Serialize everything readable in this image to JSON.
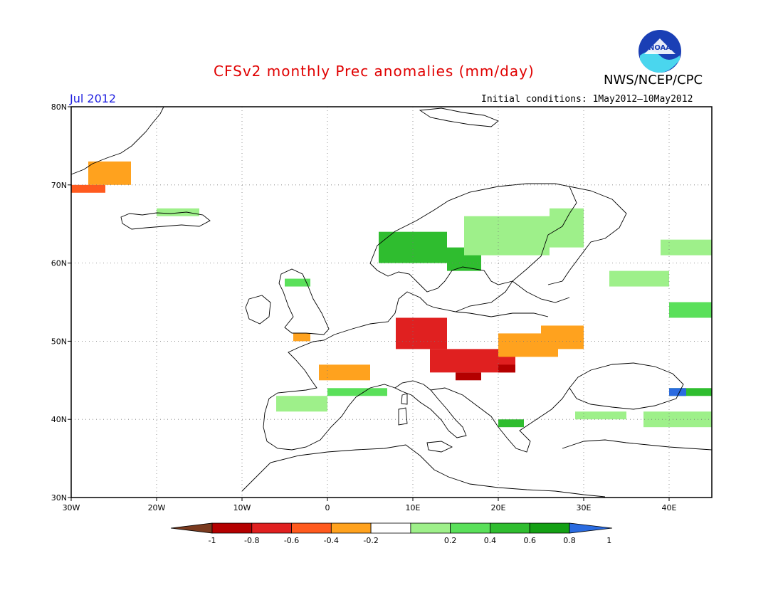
{
  "header": {
    "title": "CFSv2 monthly Prec anomalies (mm/day)",
    "agency": "NWS/NCEP/CPC",
    "month": "Jul 2012",
    "initial_conditions": "Initial conditions: 1May2012–10May2012",
    "logo_text": "NOAA"
  },
  "map": {
    "lon_range": [
      -30,
      45
    ],
    "lat_range": [
      30,
      80
    ],
    "lon_ticks": [
      {
        "value": -30,
        "label": "30W"
      },
      {
        "value": -20,
        "label": "20W"
      },
      {
        "value": -10,
        "label": "10W"
      },
      {
        "value": 0,
        "label": "0"
      },
      {
        "value": 10,
        "label": "10E"
      },
      {
        "value": 20,
        "label": "20E"
      },
      {
        "value": 30,
        "label": "30E"
      },
      {
        "value": 40,
        "label": "40E"
      }
    ],
    "lat_ticks": [
      {
        "value": 80,
        "label": "80N"
      },
      {
        "value": 70,
        "label": "70N"
      },
      {
        "value": 60,
        "label": "60N"
      },
      {
        "value": 50,
        "label": "50N"
      },
      {
        "value": 40,
        "label": "40N"
      },
      {
        "value": 30,
        "label": "30N"
      }
    ],
    "grid": true
  },
  "colorbar": {
    "colors": [
      "#7a3a1e",
      "#b40000",
      "#e02020",
      "#ff5a1e",
      "#ffa21e",
      "#ffffff",
      "#9ef08a",
      "#5ae05a",
      "#2fbd2f",
      "#14a014",
      "#2a6be0"
    ],
    "labels": [
      "-1",
      "-0.8",
      "-0.6",
      "-0.4",
      "-0.2",
      "0.2",
      "0.4",
      "0.6",
      "0.8",
      "1"
    ]
  },
  "chart_data": {
    "type": "heatmap",
    "title": "CFSv2 monthly Prec anomalies (mm/day)",
    "xlabel": "",
    "ylabel": "",
    "xlim": [
      -30,
      45
    ],
    "ylim": [
      30,
      80
    ],
    "regions": [
      {
        "lon": [
          -28,
          -23
        ],
        "lat": [
          70,
          73
        ],
        "anomaly": -0.3
      },
      {
        "lon": [
          -30,
          -26
        ],
        "lat": [
          69,
          70
        ],
        "anomaly": -0.5
      },
      {
        "lon": [
          -20,
          -15
        ],
        "lat": [
          66,
          67
        ],
        "anomaly": 0.3
      },
      {
        "lon": [
          6,
          14
        ],
        "lat": [
          60,
          64
        ],
        "anomaly": 0.6
      },
      {
        "lon": [
          14,
          18
        ],
        "lat": [
          59,
          62
        ],
        "anomaly": 0.6
      },
      {
        "lon": [
          16,
          26
        ],
        "lat": [
          61,
          66
        ],
        "anomaly": 0.3
      },
      {
        "lon": [
          26,
          30
        ],
        "lat": [
          62,
          67
        ],
        "anomaly": 0.3
      },
      {
        "lon": [
          -5,
          -2
        ],
        "lat": [
          57,
          58
        ],
        "anomaly": 0.4
      },
      {
        "lon": [
          -4,
          -2
        ],
        "lat": [
          50,
          51
        ],
        "anomaly": -0.3
      },
      {
        "lon": [
          8,
          14
        ],
        "lat": [
          49,
          53
        ],
        "anomaly": -0.6
      },
      {
        "lon": [
          12,
          22
        ],
        "lat": [
          46,
          49
        ],
        "anomaly": -0.7
      },
      {
        "lon": [
          15,
          18
        ],
        "lat": [
          45,
          46
        ],
        "anomaly": -0.9
      },
      {
        "lon": [
          20,
          22
        ],
        "lat": [
          46,
          47
        ],
        "anomaly": -0.9
      },
      {
        "lon": [
          20,
          27
        ],
        "lat": [
          48,
          51
        ],
        "anomaly": -0.3
      },
      {
        "lon": [
          25,
          30
        ],
        "lat": [
          49,
          52
        ],
        "anomaly": -0.3
      },
      {
        "lon": [
          -1,
          5
        ],
        "lat": [
          45,
          47
        ],
        "anomaly": -0.3
      },
      {
        "lon": [
          0,
          7
        ],
        "lat": [
          43,
          44
        ],
        "anomaly": 0.5
      },
      {
        "lon": [
          -6,
          0
        ],
        "lat": [
          41,
          43
        ],
        "anomaly": 0.3
      },
      {
        "lon": [
          20,
          23
        ],
        "lat": [
          39,
          40
        ],
        "anomaly": 0.7
      },
      {
        "lon": [
          29,
          35
        ],
        "lat": [
          40,
          41
        ],
        "anomaly": 0.3
      },
      {
        "lon": [
          37,
          45
        ],
        "lat": [
          39,
          41
        ],
        "anomaly": 0.3
      },
      {
        "lon": [
          40,
          45
        ],
        "lat": [
          43,
          44
        ],
        "anomaly": 0.6
      },
      {
        "lon": [
          40,
          42
        ],
        "lat": [
          43,
          44
        ],
        "anomaly": 1.0
      },
      {
        "lon": [
          40,
          45
        ],
        "lat": [
          53,
          55
        ],
        "anomaly": 0.4
      },
      {
        "lon": [
          33,
          40
        ],
        "lat": [
          57,
          59
        ],
        "anomaly": 0.3
      },
      {
        "lon": [
          39,
          45
        ],
        "lat": [
          61,
          63
        ],
        "anomaly": 0.3
      }
    ]
  }
}
